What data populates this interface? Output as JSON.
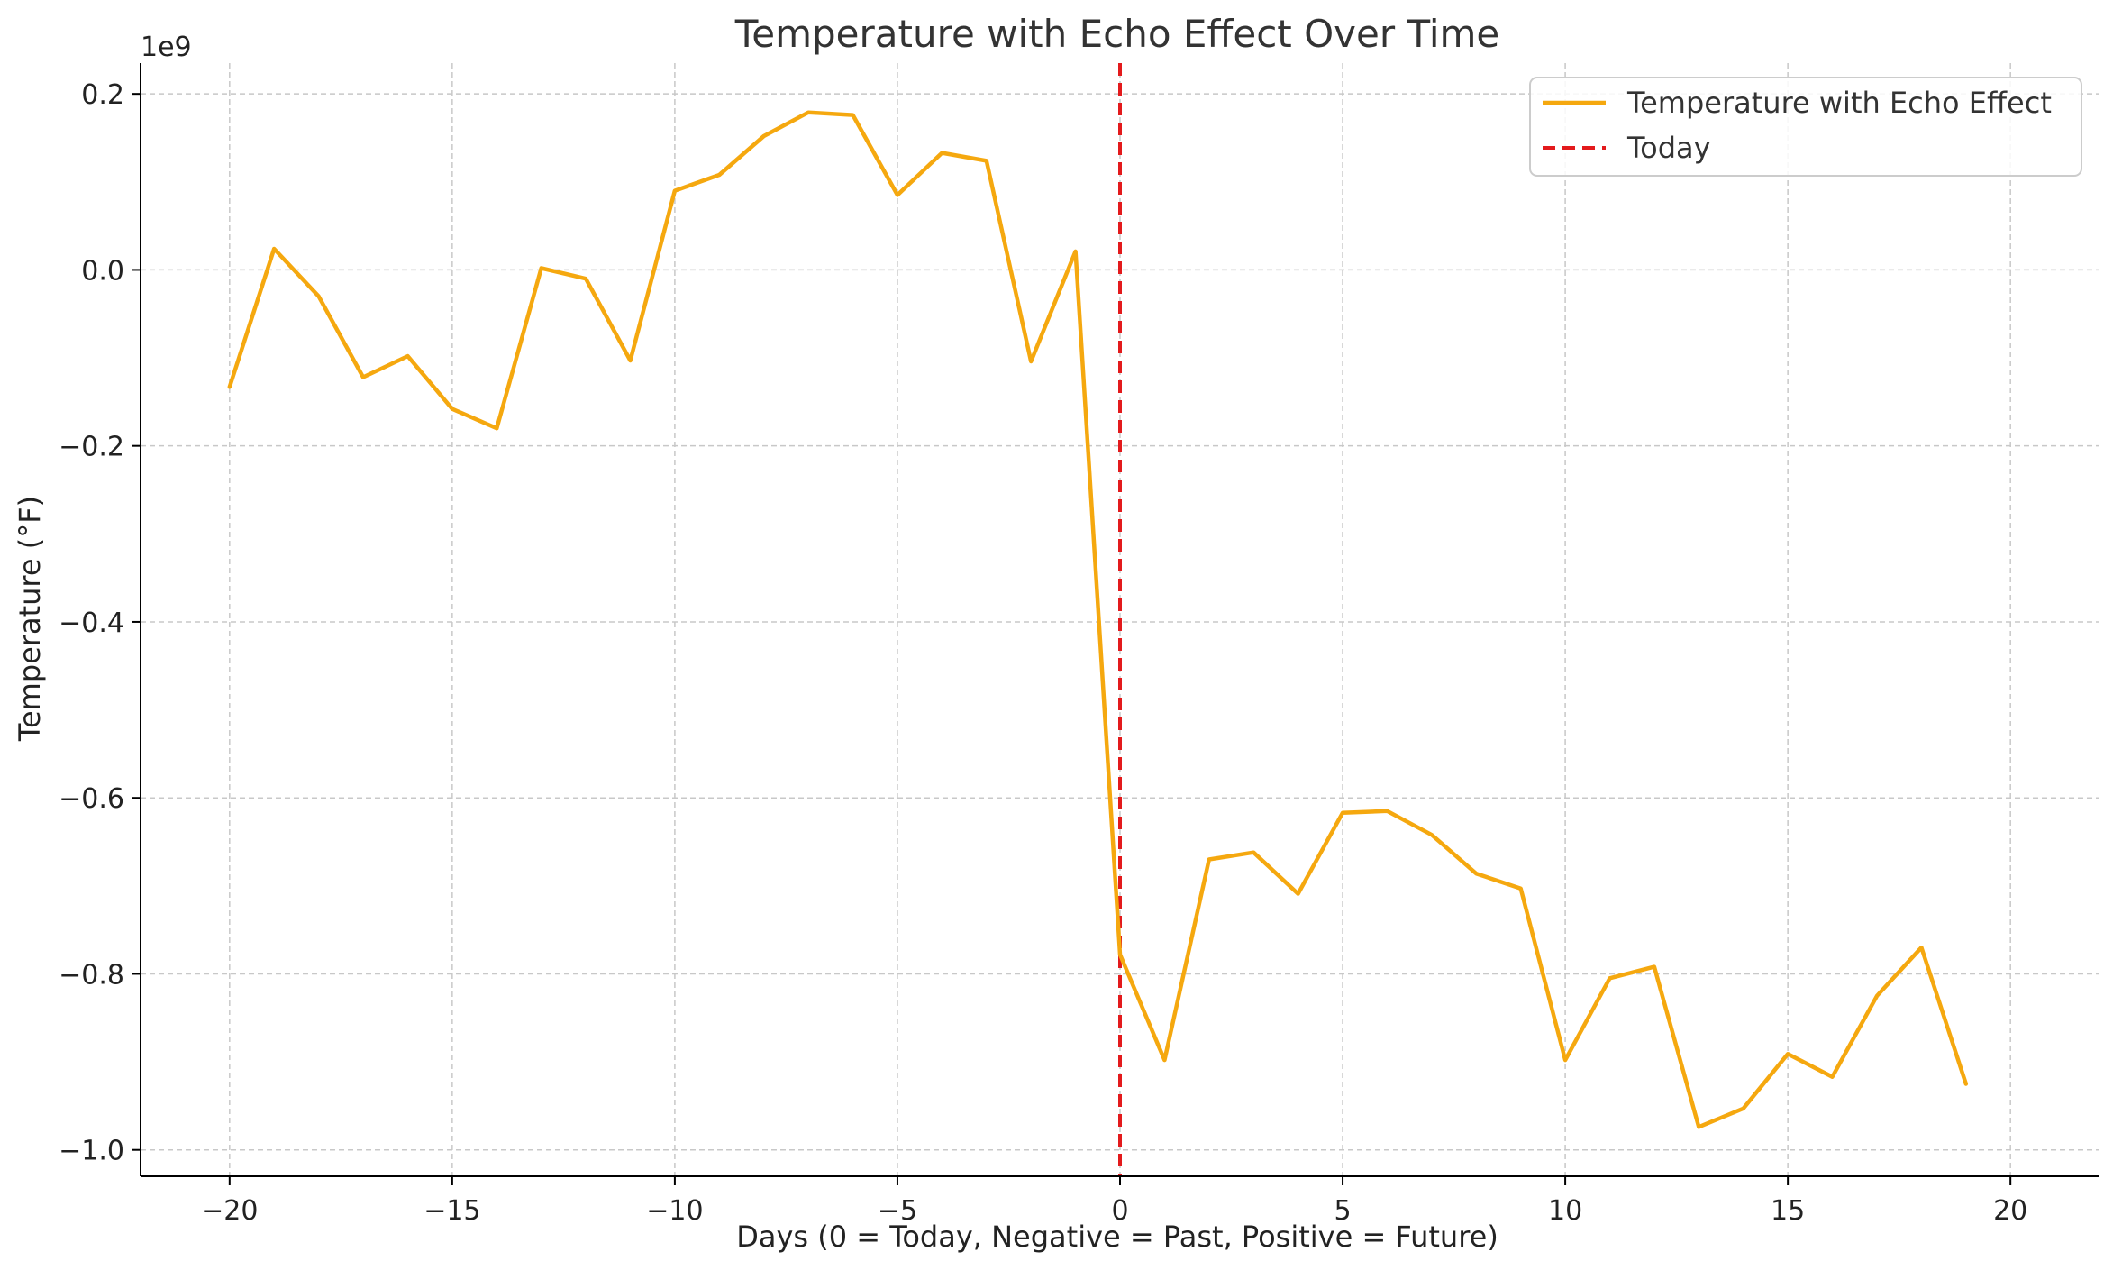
{
  "chart_data": {
    "type": "line",
    "title": "Temperature with Echo Effect Over Time",
    "xlabel": "Days (0 = Today, Negative = Past, Positive = Future)",
    "ylabel": "Temperature (°F)",
    "y_offset_label": "1e9",
    "xlim": [
      -22,
      22
    ],
    "ylim": [
      -1.03,
      0.235
    ],
    "x_ticks": [
      -20,
      -15,
      -10,
      -5,
      0,
      5,
      10,
      15,
      20
    ],
    "x_tick_labels": [
      "−20",
      "−15",
      "−10",
      "−5",
      "0",
      "5",
      "10",
      "15",
      "20"
    ],
    "y_ticks": [
      0.2,
      0.0,
      -0.2,
      -0.4,
      -0.6,
      -0.8,
      -1.0
    ],
    "y_tick_labels": [
      "0.2",
      "0.0",
      "−0.2",
      "−0.4",
      "−0.6",
      "−0.8",
      "−1.0"
    ],
    "grid": true,
    "legend_position": "top-right",
    "series": [
      {
        "name": "Temperature with Echo Effect",
        "color": "#f5a80f",
        "style": "solid",
        "x": [
          -20,
          -19,
          -18,
          -17,
          -16,
          -15,
          -14,
          -13,
          -12,
          -11,
          -10,
          -9,
          -8,
          -7,
          -6,
          -5,
          -4,
          -3,
          -2,
          -1,
          0,
          1,
          2,
          3,
          4,
          5,
          6,
          7,
          8,
          9,
          10,
          11,
          12,
          13,
          14,
          15,
          16,
          17,
          18,
          19
        ],
        "y": [
          -0.133,
          0.024,
          -0.03,
          -0.122,
          -0.098,
          -0.158,
          -0.18,
          0.002,
          -0.01,
          -0.103,
          0.09,
          0.108,
          0.152,
          0.179,
          0.176,
          0.085,
          0.133,
          0.124,
          -0.104,
          0.021,
          -0.778,
          -0.898,
          -0.67,
          -0.662,
          -0.709,
          -0.617,
          -0.615,
          -0.642,
          -0.686,
          -0.703,
          -0.898,
          -0.805,
          -0.792,
          -0.974,
          -0.953,
          -0.891,
          -0.917,
          -0.825,
          -0.77,
          -0.925
        ]
      }
    ],
    "vertical_lines": [
      {
        "name": "Today",
        "x": 0,
        "color": "#e31a1c",
        "style": "dashed"
      }
    ]
  }
}
